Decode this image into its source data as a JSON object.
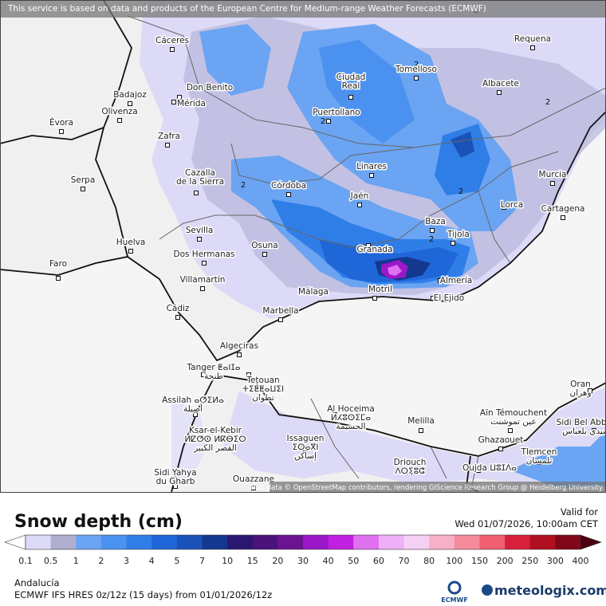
{
  "banner": "This service is based on data and products of the European Centre for Medium-range Weather Forecasts (ECMWF)",
  "attribution": "Map data © OpenStreetMap contributors, rendering GIScience Research Group @ Heidelberg University",
  "cities": [
    {
      "lines": [
        "Cáceres"
      ]
    },
    {
      "lines": [
        "Requena"
      ]
    },
    {
      "lines": [
        "Tomelloso"
      ]
    },
    {
      "lines": [
        "Ciudad",
        "Real"
      ]
    },
    {
      "lines": [
        "Don Benito"
      ]
    },
    {
      "lines": [
        "Badajoz"
      ]
    },
    {
      "lines": [
        "Mérida"
      ]
    },
    {
      "lines": [
        "Albacete"
      ]
    },
    {
      "lines": [
        "Olivenza"
      ]
    },
    {
      "lines": [
        "Puertollano"
      ]
    },
    {
      "lines": [
        "Évora"
      ]
    },
    {
      "lines": [
        "Zafra"
      ]
    },
    {
      "lines": [
        "Linares"
      ]
    },
    {
      "lines": [
        "Murcia"
      ]
    },
    {
      "lines": [
        "Cazalla",
        "de la Sierra"
      ]
    },
    {
      "lines": [
        "Córdoba"
      ]
    },
    {
      "lines": [
        "Serpa"
      ]
    },
    {
      "lines": [
        "Jaén"
      ]
    },
    {
      "lines": [
        "Lorca"
      ]
    },
    {
      "lines": [
        "Cartagena"
      ]
    },
    {
      "lines": [
        "Baza"
      ]
    },
    {
      "lines": [
        "Sevilla"
      ]
    },
    {
      "lines": [
        "Tijola"
      ]
    },
    {
      "lines": [
        "Huelva"
      ]
    },
    {
      "lines": [
        "Osuna"
      ]
    },
    {
      "lines": [
        "Granada"
      ]
    },
    {
      "lines": [
        "Faro"
      ]
    },
    {
      "lines": [
        "Dos Hermanas"
      ]
    },
    {
      "lines": [
        "Almería"
      ]
    },
    {
      "lines": [
        "Villamartín"
      ]
    },
    {
      "lines": [
        "Motril"
      ]
    },
    {
      "lines": [
        "Málaga"
      ]
    },
    {
      "lines": [
        "El Ejido"
      ]
    },
    {
      "lines": [
        "Cádiz"
      ]
    },
    {
      "lines": [
        "Marbella"
      ]
    },
    {
      "lines": [
        "Algeciras"
      ]
    },
    {
      "lines": [
        "Tanger ⵟⴰⵏⵊⴰ",
        "طنجة"
      ]
    },
    {
      "lines": [
        "Tetouan",
        "ⵜⵉⵟⵟⴰⵡⵉⵏ",
        "تطوان"
      ]
    },
    {
      "lines": [
        "Assilah ⴰⵚⵉⵍⴰ",
        "أصيلة"
      ]
    },
    {
      "lines": [
        "Al Hoceima",
        "ⵍⵃⵓⵙⵉⵎⴰ",
        "الحسيمة"
      ]
    },
    {
      "lines": [
        "Melilla"
      ]
    },
    {
      "lines": [
        "Aïn Témouchent",
        "عين تموشنت"
      ]
    },
    {
      "lines": [
        "Oran",
        "وهران"
      ]
    },
    {
      "lines": [
        "Sidi Bel Abbès",
        "سيدي بلعباس"
      ]
    },
    {
      "lines": [
        "Ghazaouet"
      ]
    },
    {
      "lines": [
        "Ksar-el-Kebir",
        "ⵍⵇⵚⵔ ⵍⴽⴱⵉⵔ",
        "القصر الكبير"
      ]
    },
    {
      "lines": [
        "Issaguen",
        "ⵉⵙⴰⴳⵏ",
        "إساكن"
      ]
    },
    {
      "lines": [
        "Tlemcen",
        "تلمسان"
      ]
    },
    {
      "lines": [
        "Driouch",
        "ⴷⵔⵢⵓⵛ"
      ]
    },
    {
      "lines": [
        "Oujda ⵡⵓⵊⴷⴰ"
      ]
    },
    {
      "lines": [
        "Sidi Yahya",
        "du Gharb"
      ]
    },
    {
      "lines": [
        "Ouazzane"
      ]
    }
  ],
  "contour_labels": [
    2,
    2,
    2,
    2,
    2,
    2,
    2
  ],
  "legend": {
    "title": "Snow depth (cm)",
    "levels": [
      0.1,
      0.5,
      1,
      2,
      3,
      4,
      5,
      7,
      10,
      15,
      20,
      30,
      40,
      50,
      60,
      70,
      80,
      100,
      150,
      200,
      250,
      300,
      400
    ],
    "colors": [
      "#dcdaf6",
      "#b0aed0",
      "#6aa4f2",
      "#4b92f0",
      "#2f7ee8",
      "#1f66d8",
      "#1a52b8",
      "#14378f",
      "#2a1870",
      "#4a137a",
      "#6a148f",
      "#9a18c8",
      "#c020e0",
      "#e070f0",
      "#eeb0f6",
      "#f6d0f4",
      "#f8b0c8",
      "#f58a9a",
      "#f06070",
      "#d8203a",
      "#b01020",
      "#800818"
    ],
    "under_color": "#ffffff",
    "over_color": "#4a0010"
  },
  "valid": {
    "label": "Valid for",
    "time": "Wed 01/07/2026, 10:00am CET"
  },
  "footer": {
    "region": "Andalucía",
    "model": "ECMWF IFS HRES 0z/12z (15 days) from 01/01/2026/12z",
    "ecmwf": "ECMWF",
    "brand": "meteologix.com"
  }
}
